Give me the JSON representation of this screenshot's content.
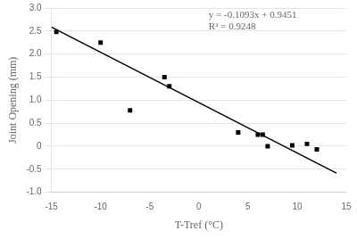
{
  "chart_data": {
    "type": "scatter",
    "xlabel": "T-Tref (°C)",
    "ylabel": "Joint Opening (mm)",
    "series": [
      {
        "type": "scatter",
        "color": "#000000",
        "marker": "square",
        "x": [
          -14.5,
          -10.0,
          -3.5,
          -3.0,
          -7.0,
          4.0,
          6.0,
          6.5,
          7.0,
          9.5,
          11.0,
          12.0
        ],
        "values": [
          2.48,
          2.25,
          1.5,
          1.3,
          0.78,
          0.3,
          0.25,
          0.25,
          0.0,
          0.02,
          0.05,
          -0.07
        ]
      },
      {
        "type": "line",
        "color": "#000000",
        "x": [
          -15.0,
          14.0
        ],
        "values": [
          2.5846,
          -0.5851
        ]
      }
    ],
    "annotations": [
      {
        "text": [
          "y = -0.1093x + 0.9451",
          "R² = 0.9248"
        ],
        "x": 1.0,
        "y": 2.95
      }
    ],
    "xlim": [
      -15,
      15
    ],
    "ylim": [
      -1,
      3
    ],
    "xticks": [
      -15,
      -10,
      -5,
      0,
      5,
      10,
      15
    ],
    "yticks": [
      -1,
      -0.5,
      0,
      0.5,
      1,
      1.5,
      2,
      2.5,
      3
    ],
    "grid": "y"
  }
}
